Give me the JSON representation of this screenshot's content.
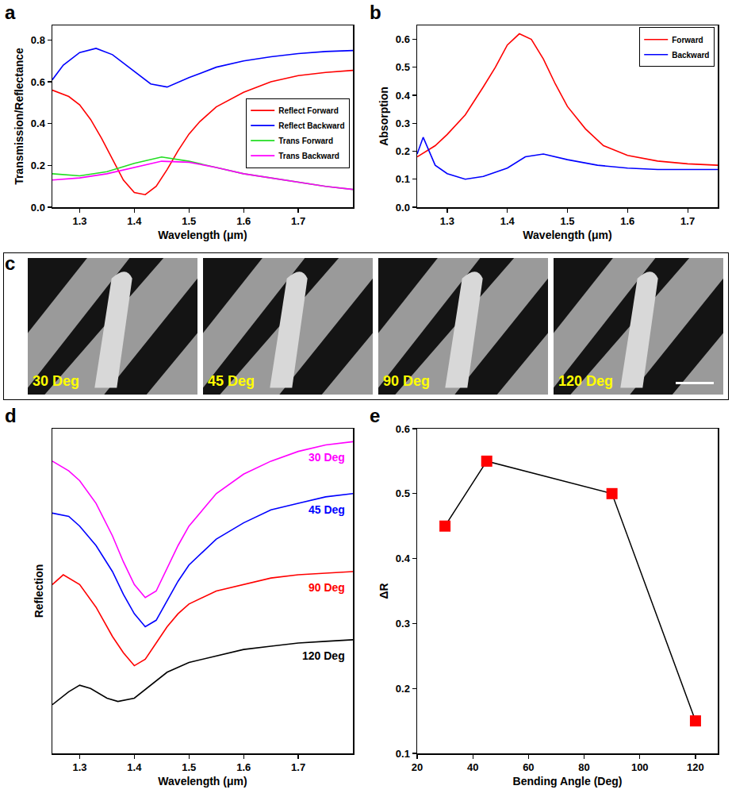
{
  "chart_data": [
    {
      "panel": "a",
      "type": "line",
      "x_label": "Wavelength (μm)",
      "y_label": "Transmission/Reflectance",
      "xlim": [
        1.25,
        1.8
      ],
      "xticks": [
        1.3,
        1.4,
        1.5,
        1.6,
        1.7
      ],
      "ylim": [
        0,
        0.87
      ],
      "yticks": [
        {
          "value": 0,
          "label": "0.0"
        },
        0.2,
        0.4,
        0.6,
        0.8
      ],
      "grid": false,
      "legend": "right",
      "series": [
        {
          "name": "Reflect Forward",
          "color": "#ff0000",
          "x": [
            1.25,
            1.28,
            1.3,
            1.32,
            1.34,
            1.36,
            1.38,
            1.4,
            1.42,
            1.44,
            1.46,
            1.48,
            1.5,
            1.52,
            1.55,
            1.6,
            1.65,
            1.7,
            1.75,
            1.8
          ],
          "values": [
            0.56,
            0.53,
            0.49,
            0.42,
            0.33,
            0.23,
            0.13,
            0.07,
            0.06,
            0.1,
            0.18,
            0.27,
            0.35,
            0.41,
            0.48,
            0.55,
            0.6,
            0.63,
            0.645,
            0.655
          ]
        },
        {
          "name": "Reflect Backward",
          "color": "#0000ff",
          "x": [
            1.25,
            1.27,
            1.3,
            1.33,
            1.36,
            1.4,
            1.43,
            1.46,
            1.5,
            1.55,
            1.6,
            1.65,
            1.7,
            1.75,
            1.8
          ],
          "values": [
            0.61,
            0.68,
            0.74,
            0.76,
            0.73,
            0.65,
            0.59,
            0.575,
            0.62,
            0.67,
            0.7,
            0.72,
            0.735,
            0.745,
            0.75
          ]
        },
        {
          "name": "Trans Forward",
          "color": "#22dd22",
          "x": [
            1.25,
            1.3,
            1.35,
            1.4,
            1.45,
            1.5,
            1.55,
            1.6,
            1.65,
            1.7,
            1.75,
            1.8
          ],
          "values": [
            0.16,
            0.15,
            0.17,
            0.21,
            0.24,
            0.22,
            0.19,
            0.16,
            0.14,
            0.12,
            0.1,
            0.085
          ]
        },
        {
          "name": "Trans Backward",
          "color": "#ff00ff",
          "x": [
            1.25,
            1.3,
            1.35,
            1.4,
            1.45,
            1.5,
            1.55,
            1.6,
            1.65,
            1.7,
            1.75,
            1.8
          ],
          "values": [
            0.13,
            0.14,
            0.16,
            0.19,
            0.22,
            0.215,
            0.19,
            0.16,
            0.14,
            0.12,
            0.1,
            0.085
          ]
        }
      ]
    },
    {
      "panel": "b",
      "type": "line",
      "x_label": "Wavelength (μm)",
      "y_label": "Absorption",
      "xlim": [
        1.25,
        1.75
      ],
      "xticks": [
        1.3,
        1.4,
        1.5,
        1.6,
        1.7
      ],
      "ylim": [
        0,
        0.65
      ],
      "yticks": [
        {
          "value": 0,
          "label": "0.0"
        },
        0.1,
        0.2,
        0.3,
        0.4,
        0.5,
        0.6
      ],
      "grid": false,
      "legend": "upper right",
      "series": [
        {
          "name": "Forward",
          "color": "#ff0000",
          "x": [
            1.25,
            1.28,
            1.3,
            1.33,
            1.36,
            1.38,
            1.4,
            1.42,
            1.44,
            1.46,
            1.48,
            1.5,
            1.53,
            1.56,
            1.6,
            1.65,
            1.7,
            1.75
          ],
          "values": [
            0.18,
            0.22,
            0.26,
            0.33,
            0.43,
            0.5,
            0.58,
            0.62,
            0.6,
            0.53,
            0.44,
            0.36,
            0.28,
            0.22,
            0.185,
            0.165,
            0.155,
            0.15
          ]
        },
        {
          "name": "Backward",
          "color": "#0000ff",
          "x": [
            1.25,
            1.26,
            1.28,
            1.3,
            1.33,
            1.36,
            1.4,
            1.43,
            1.46,
            1.5,
            1.55,
            1.6,
            1.65,
            1.7,
            1.75
          ],
          "values": [
            0.19,
            0.25,
            0.15,
            0.12,
            0.1,
            0.11,
            0.14,
            0.18,
            0.19,
            0.17,
            0.15,
            0.14,
            0.135,
            0.135,
            0.135
          ]
        }
      ]
    },
    {
      "panel": "c",
      "type": "image",
      "labels": [
        "30 Deg",
        "45 Deg",
        "90 Deg",
        "120 Deg"
      ]
    },
    {
      "panel": "d",
      "type": "line",
      "x_label": "Wavelength (μm)",
      "y_label": "Reflection",
      "xlim": [
        1.25,
        1.8
      ],
      "xticks": [
        1.3,
        1.4,
        1.5,
        1.6,
        1.7
      ],
      "ylim": [
        0,
        1
      ],
      "tick_labels": "x",
      "grid": false,
      "series": [
        {
          "name": "30 Deg",
          "color": "#ff00ff",
          "x": [
            1.25,
            1.28,
            1.3,
            1.33,
            1.36,
            1.38,
            1.4,
            1.42,
            1.44,
            1.46,
            1.48,
            1.5,
            1.55,
            1.6,
            1.65,
            1.7,
            1.75,
            1.8
          ],
          "values": [
            0.9,
            0.87,
            0.84,
            0.77,
            0.67,
            0.59,
            0.52,
            0.48,
            0.5,
            0.57,
            0.64,
            0.7,
            0.8,
            0.86,
            0.9,
            0.93,
            0.95,
            0.96
          ]
        },
        {
          "name": "45 Deg",
          "color": "#0000ff",
          "x": [
            1.25,
            1.28,
            1.3,
            1.33,
            1.36,
            1.38,
            1.4,
            1.42,
            1.44,
            1.46,
            1.48,
            1.5,
            1.55,
            1.6,
            1.65,
            1.7,
            1.75,
            1.8
          ],
          "values": [
            0.74,
            0.73,
            0.7,
            0.64,
            0.56,
            0.49,
            0.43,
            0.39,
            0.41,
            0.47,
            0.53,
            0.58,
            0.66,
            0.71,
            0.75,
            0.77,
            0.79,
            0.8
          ]
        },
        {
          "name": "90 Deg",
          "color": "#ff0000",
          "x": [
            1.25,
            1.27,
            1.3,
            1.33,
            1.36,
            1.38,
            1.4,
            1.42,
            1.44,
            1.46,
            1.48,
            1.5,
            1.55,
            1.6,
            1.65,
            1.7,
            1.75,
            1.8
          ],
          "values": [
            0.52,
            0.55,
            0.52,
            0.45,
            0.36,
            0.31,
            0.27,
            0.29,
            0.34,
            0.39,
            0.43,
            0.46,
            0.5,
            0.52,
            0.54,
            0.55,
            0.555,
            0.56
          ]
        },
        {
          "name": "120 Deg",
          "color": "#000000",
          "x": [
            1.25,
            1.28,
            1.3,
            1.32,
            1.35,
            1.37,
            1.4,
            1.43,
            1.46,
            1.5,
            1.55,
            1.6,
            1.65,
            1.7,
            1.75,
            1.8
          ],
          "values": [
            0.15,
            0.19,
            0.21,
            0.2,
            0.17,
            0.16,
            0.17,
            0.21,
            0.25,
            0.28,
            0.3,
            0.32,
            0.33,
            0.34,
            0.345,
            0.35
          ]
        }
      ]
    },
    {
      "panel": "e",
      "type": "line",
      "x_label": "Bending Angle (Deg)",
      "y_label": "ΔR",
      "xlim": [
        20,
        128
      ],
      "xticks": [
        20,
        40,
        60,
        80,
        100,
        120
      ],
      "ylim": [
        0.1,
        0.6
      ],
      "yticks": [
        0.1,
        0.2,
        0.3,
        0.4,
        0.5,
        0.6
      ],
      "grid": false,
      "marker": "square",
      "line_style": "solid",
      "color": "#ff0000",
      "x": [
        30,
        45,
        90,
        120
      ],
      "values": [
        0.45,
        0.55,
        0.5,
        0.15
      ]
    }
  ]
}
